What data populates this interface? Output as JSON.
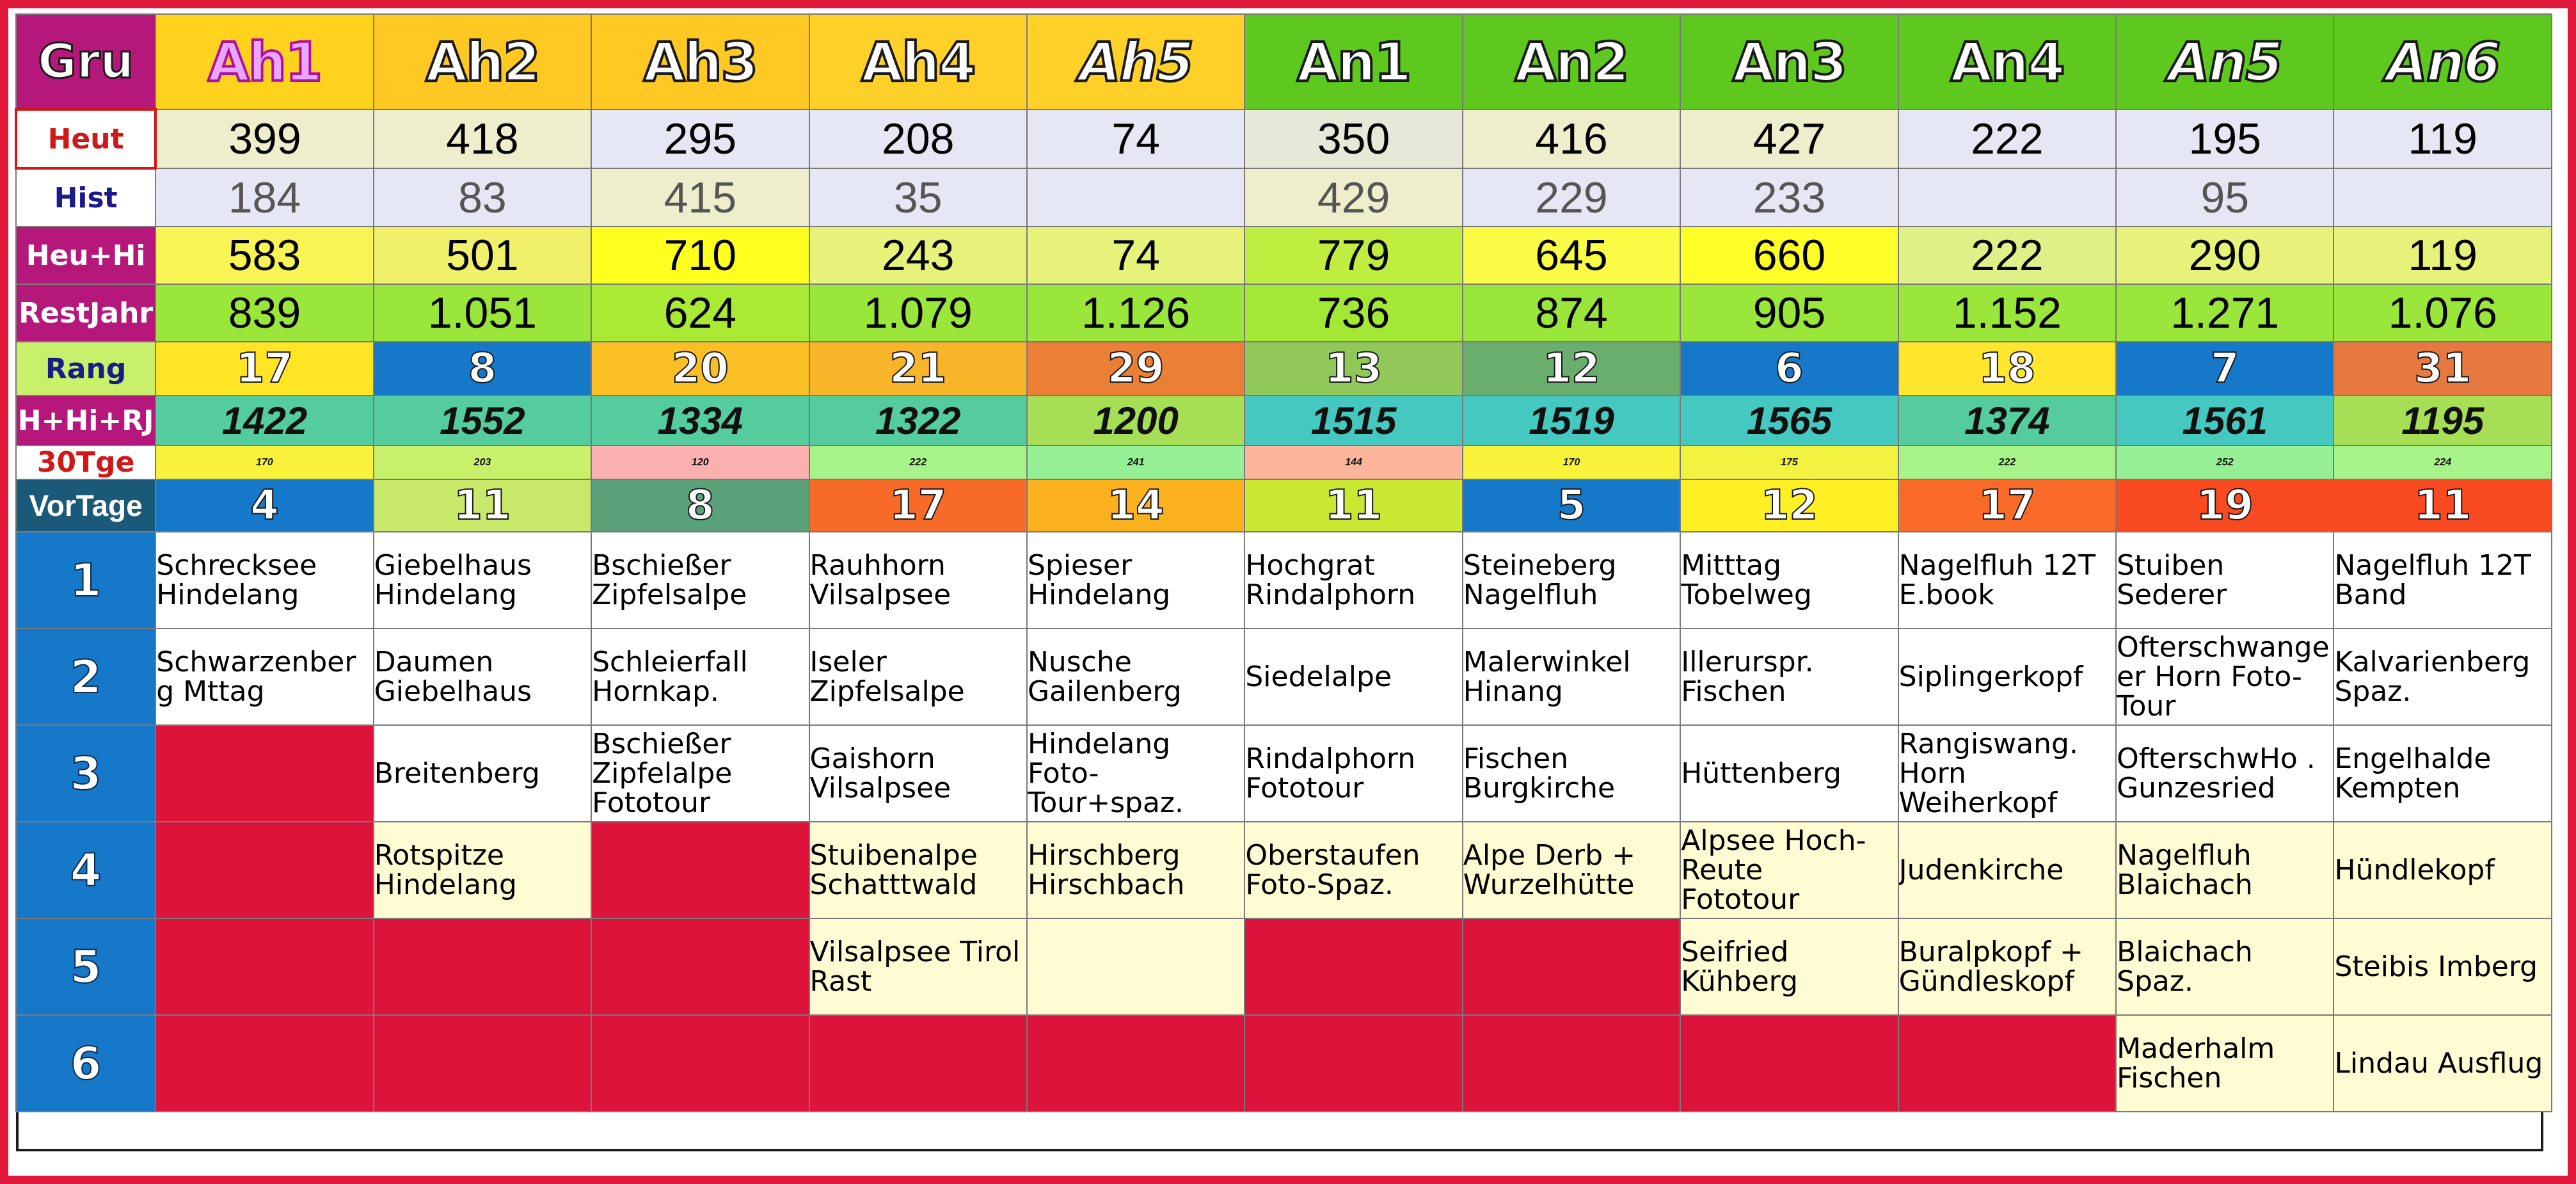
{
  "header": {
    "label": "Gru",
    "groups": [
      "Ah1",
      "Ah2",
      "Ah3",
      "Ah4",
      "Ah5",
      "An1",
      "An2",
      "An3",
      "An4",
      "An5",
      "An6"
    ],
    "italic": [
      false,
      false,
      false,
      false,
      true,
      false,
      false,
      false,
      false,
      true,
      true
    ],
    "colors": [
      "#ffd21e",
      "#ffc823",
      "#ffc823",
      "#ffd028",
      "#ffd028",
      "#5ec81e",
      "#5ec81e",
      "#5ec81e",
      "#5ec81e",
      "#5ec81e",
      "#5ec81e"
    ]
  },
  "stats": [
    {
      "label": "Heut",
      "key": "heut",
      "values": [
        "399",
        "418",
        "295",
        "208",
        "74",
        "350",
        "416",
        "427",
        "222",
        "195",
        "119"
      ],
      "colors": [
        "#eeeecd",
        "#eeeecd",
        "#e5e7f5",
        "#e5e7f5",
        "#e5e7f5",
        "#e8e8d8",
        "#eeeecd",
        "#eeeecd",
        "#e5e7f5",
        "#e5e7f5",
        "#e5e7f5"
      ]
    },
    {
      "label": "Hist",
      "key": "hist",
      "values": [
        "184",
        "83",
        "415",
        "35",
        "",
        "429",
        "229",
        "233",
        "",
        "95",
        ""
      ],
      "colors": [
        "#e5e7f5",
        "#e5e7f5",
        "#eeeecd",
        "#e5e7f5",
        "#e5e7f5",
        "#eeeecd",
        "#e5e7f5",
        "#e5e7f5",
        "#e5e7f5",
        "#e5e7f5",
        "#e5e7f5"
      ]
    },
    {
      "label": "Heu+Hi",
      "key": "hh",
      "values": [
        "583",
        "501",
        "710",
        "243",
        "74",
        "779",
        "645",
        "660",
        "222",
        "290",
        "119"
      ],
      "colors": [
        "#f8f455",
        "#f0f06a",
        "#ffff20",
        "#e6f27a",
        "#e6f27a",
        "#bfee40",
        "#fbfc45",
        "#ffff28",
        "#e0f088",
        "#e6f27a",
        "#e6f27a"
      ]
    },
    {
      "label": "RestJahr",
      "key": "rj",
      "values": [
        "839",
        "1.051",
        "624",
        "1.079",
        "1.126",
        "736",
        "874",
        "905",
        "1.152",
        "1.271",
        "1.076"
      ],
      "colors": [
        "#9be63a",
        "#9be63a",
        "#aaea34",
        "#9be63a",
        "#9be63a",
        "#a4e836",
        "#9be63a",
        "#9be63a",
        "#9be63a",
        "#9be63a",
        "#9be63a"
      ]
    },
    {
      "label": "Rang",
      "key": "rang",
      "values": [
        "17",
        "8",
        "20",
        "21",
        "29",
        "13",
        "12",
        "6",
        "18",
        "7",
        "31"
      ],
      "colors": [
        "#ffe524",
        "#1578c8",
        "#fac023",
        "#f8b52a",
        "#eb7f35",
        "#92c85a",
        "#6aae6e",
        "#1578c8",
        "#fde62c",
        "#1578c8",
        "#e67840"
      ]
    },
    {
      "label": "H+Hi+RJ",
      "key": "hhrj",
      "values": [
        "1422",
        "1552",
        "1334",
        "1322",
        "1200",
        "1515",
        "1519",
        "1565",
        "1374",
        "1561",
        "1195"
      ],
      "colors": [
        "#55cc9e",
        "#55cc9e",
        "#55cc9e",
        "#55cc9e",
        "#a6df55",
        "#45c8c0",
        "#45c8c0",
        "#45c8c0",
        "#55cc9e",
        "#45c8c0",
        "#a6df55"
      ]
    },
    {
      "label": "30Tge",
      "key": "t30",
      "values": [
        "170",
        "203",
        "120",
        "222",
        "241",
        "144",
        "170",
        "175",
        "222",
        "252",
        "224"
      ],
      "colors": [
        "#f8f33a",
        "#c8f06a",
        "#fbb0b0",
        "#a8f28a",
        "#95ef95",
        "#fbb59a",
        "#f8f33a",
        "#f2f240",
        "#a8f28a",
        "#95ef95",
        "#a8f28a"
      ]
    },
    {
      "label": "VorTage",
      "key": "vt",
      "values": [
        "4",
        "11",
        "8",
        "17",
        "14",
        "11",
        "5",
        "12",
        "17",
        "19",
        "11"
      ],
      "colors": [
        "#1578c8",
        "#c8e86a",
        "#5aa078",
        "#f86a28",
        "#fbb01e",
        "#c8e832",
        "#1578c8",
        "#fff025",
        "#fa6a28",
        "#fa4a22",
        "#fa4a22"
      ]
    }
  ],
  "tours": [
    {
      "num": "1",
      "cells": [
        {
          "text": [
            "Schrecksee",
            "Hindelang"
          ],
          "bg": "white"
        },
        {
          "text": [
            "Giebelhaus",
            "Hindelang"
          ],
          "bg": "white"
        },
        {
          "text": [
            "Bschießer",
            "Zipfelsalpe"
          ],
          "bg": "white"
        },
        {
          "text": [
            "Rauhhorn",
            "Vilsalpsee"
          ],
          "bg": "white"
        },
        {
          "text": [
            "Spieser",
            "Hindelang"
          ],
          "bg": "white"
        },
        {
          "text": [
            "Hochgrat",
            "Rindalphorn"
          ],
          "bg": "white"
        },
        {
          "text": [
            "Steineberg",
            "Nagelfluh"
          ],
          "bg": "white"
        },
        {
          "text": [
            "Mitttag",
            "Tobelweg"
          ],
          "bg": "white"
        },
        {
          "text": [
            "Nagelfluh 12T",
            "E.book"
          ],
          "bg": "white"
        },
        {
          "text": [
            "Stuiben",
            "Sederer"
          ],
          "bg": "white"
        },
        {
          "text": [
            "Nagelfluh 12T",
            "Band"
          ],
          "bg": "white"
        }
      ]
    },
    {
      "num": "2",
      "cells": [
        {
          "text": [
            "Schwarzenber",
            "g Mttag"
          ],
          "bg": "white"
        },
        {
          "text": [
            "Daumen",
            "Giebelhaus"
          ],
          "bg": "white"
        },
        {
          "text": [
            "Schleierfall",
            "Hornkap."
          ],
          "bg": "white"
        },
        {
          "text": [
            "Iseler",
            "Zipfelsalpe"
          ],
          "bg": "white"
        },
        {
          "text": [
            "Nusche",
            "Gailenberg"
          ],
          "bg": "white"
        },
        {
          "text": [
            "Siedelalpe"
          ],
          "bg": "white"
        },
        {
          "text": [
            "Malerwinkel",
            "Hinang"
          ],
          "bg": "white"
        },
        {
          "text": [
            "Illerurspr.",
            "Fischen"
          ],
          "bg": "white"
        },
        {
          "text": [
            "Siplingerkopf"
          ],
          "bg": "white"
        },
        {
          "text": [
            "Ofterschwange",
            "er Horn Foto-",
            "Tour"
          ],
          "bg": "white"
        },
        {
          "text": [
            "Kalvarienberg",
            "Spaz."
          ],
          "bg": "white"
        }
      ]
    },
    {
      "num": "3",
      "cells": [
        {
          "text": [],
          "bg": "red"
        },
        {
          "text": [
            "Breitenberg"
          ],
          "bg": "white"
        },
        {
          "text": [
            "Bschießer",
            "Zipfelalpe",
            "Fototour"
          ],
          "bg": "white"
        },
        {
          "text": [
            "Gaishorn",
            "Vilsalpsee"
          ],
          "bg": "white"
        },
        {
          "text": [
            "Hindelang",
            "Foto-",
            "Tour+spaz."
          ],
          "bg": "white"
        },
        {
          "text": [
            "Rindalphorn",
            "Fototour"
          ],
          "bg": "white"
        },
        {
          "text": [
            "Fischen",
            "Burgkirche"
          ],
          "bg": "white"
        },
        {
          "text": [
            "Hüttenberg"
          ],
          "bg": "white"
        },
        {
          "text": [
            "Rangiswang.",
            "Horn",
            "Weiherkopf"
          ],
          "bg": "white"
        },
        {
          "text": [
            "OfterschwHo .",
            "Gunzesried"
          ],
          "bg": "white"
        },
        {
          "text": [
            "Engelhalde",
            "Kempten"
          ],
          "bg": "white"
        }
      ]
    },
    {
      "num": "4",
      "cells": [
        {
          "text": [],
          "bg": "red"
        },
        {
          "text": [
            "Rotspitze",
            "Hindelang"
          ],
          "bg": "cream"
        },
        {
          "text": [],
          "bg": "red"
        },
        {
          "text": [
            "Stuibenalpe",
            "Schatttwald"
          ],
          "bg": "cream"
        },
        {
          "text": [
            "Hirschberg",
            "Hirschbach"
          ],
          "bg": "cream"
        },
        {
          "text": [
            "Oberstaufen",
            "Foto-Spaz."
          ],
          "bg": "cream"
        },
        {
          "text": [
            "Alpe Derb +",
            "Wurzelhütte"
          ],
          "bg": "cream"
        },
        {
          "text": [
            "Alpsee Hoch-",
            "Reute",
            "Fototour"
          ],
          "bg": "cream"
        },
        {
          "text": [
            "Judenkirche"
          ],
          "bg": "cream"
        },
        {
          "text": [
            "Nagelfluh",
            "Blaichach"
          ],
          "bg": "cream"
        },
        {
          "text": [
            "Hündlekopf"
          ],
          "bg": "cream"
        }
      ]
    },
    {
      "num": "5",
      "cells": [
        {
          "text": [],
          "bg": "red"
        },
        {
          "text": [],
          "bg": "red"
        },
        {
          "text": [],
          "bg": "red"
        },
        {
          "text": [
            "Vilsalpsee Tirol",
            "Rast"
          ],
          "bg": "cream"
        },
        {
          "text": [],
          "bg": "cream"
        },
        {
          "text": [],
          "bg": "red"
        },
        {
          "text": [],
          "bg": "red"
        },
        {
          "text": [
            "Seifried",
            "Kühberg"
          ],
          "bg": "cream"
        },
        {
          "text": [
            "Buralpkopf +",
            "Gündleskopf"
          ],
          "bg": "cream"
        },
        {
          "text": [
            "Blaichach",
            "Spaz."
          ],
          "bg": "cream"
        },
        {
          "text": [
            "Steibis Imberg"
          ],
          "bg": "cream"
        }
      ]
    },
    {
      "num": "6",
      "cells": [
        {
          "text": [],
          "bg": "red"
        },
        {
          "text": [],
          "bg": "red"
        },
        {
          "text": [],
          "bg": "red"
        },
        {
          "text": [],
          "bg": "red"
        },
        {
          "text": [],
          "bg": "red"
        },
        {
          "text": [],
          "bg": "red"
        },
        {
          "text": [],
          "bg": "red"
        },
        {
          "text": [],
          "bg": "red"
        },
        {
          "text": [],
          "bg": "red"
        },
        {
          "text": [
            "Maderhalm",
            "Fischen"
          ],
          "bg": "cream"
        },
        {
          "text": [
            "Lindau Ausflug"
          ],
          "bg": "cream"
        }
      ]
    }
  ],
  "colors": {
    "frame": "#e0183a",
    "group_label": "#b5187a",
    "row_number": "#1578c8",
    "empty_red": "#dc143c",
    "cream": "#fffbd2"
  }
}
